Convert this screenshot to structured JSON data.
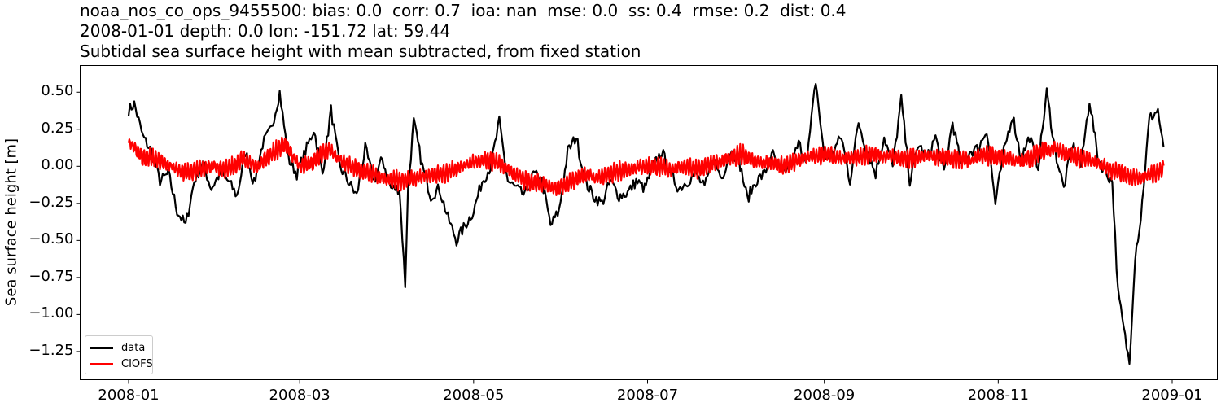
{
  "title": {
    "line1": "noaa_nos_co_ops_9455500: bias: 0.0  corr: 0.7  ioa: nan  mse: 0.0  ss: 0.4  rmse: 0.2  dist: 0.4",
    "line2": "2008-01-01 depth: 0.0 lon: -151.72 lat: 59.44",
    "line3": "Subtidal sea surface height with mean subtracted, from fixed station"
  },
  "colors": {
    "data": "#000000",
    "model": "#ff0000",
    "axis": "#000000",
    "legend_border": "#cccccc"
  },
  "chart_data": {
    "type": "line",
    "title": "noaa_nos_co_ops_9455500: bias: 0.0  corr: 0.7  ioa: nan  mse: 0.0  ss: 0.4  rmse: 0.2  dist: 0.4 / 2008-01-01 depth: 0.0 lon: -151.72 lat: 59.44 / Subtidal sea surface height with mean subtracted, from fixed station",
    "xlabel": "",
    "ylabel": "Sea surface height [m]",
    "ylim": [
      -1.44,
      0.68
    ],
    "xlim": [
      "2007-12-20",
      "2009-01-13"
    ],
    "yticks": [
      0.5,
      0.25,
      0.0,
      -0.25,
      -0.5,
      -0.75,
      -1.0,
      -1.25
    ],
    "ytick_labels": [
      "0.50",
      "0.25",
      "0.00",
      "−0.25",
      "−0.50",
      "−0.75",
      "−1.00",
      "−1.25"
    ],
    "xticks": [
      "2008-01",
      "2008-03",
      "2008-05",
      "2008-07",
      "2008-09",
      "2008-11",
      "2009-01"
    ],
    "grid": false,
    "legend_position": "lower left",
    "legend": [
      "data",
      "CIOFS"
    ],
    "series": [
      {
        "name": "data",
        "color": "#000000",
        "x_day": [
          0,
          2,
          5,
          8,
          11,
          14,
          17,
          20,
          23,
          26,
          29,
          32,
          35,
          38,
          41,
          44,
          47,
          50,
          53,
          56,
          59,
          62,
          65,
          68,
          71,
          74,
          77,
          80,
          83,
          86,
          89,
          92,
          95,
          97,
          98,
          100,
          103,
          106,
          109,
          112,
          115,
          118,
          121,
          124,
          127,
          130,
          133,
          136,
          139,
          142,
          145,
          148,
          151,
          154,
          157,
          160,
          163,
          166,
          169,
          172,
          175,
          178,
          181,
          184,
          187,
          190,
          193,
          196,
          199,
          202,
          205,
          208,
          211,
          214,
          217,
          220,
          223,
          226,
          229,
          232,
          235,
          238,
          241,
          244,
          247,
          250,
          253,
          256,
          259,
          262,
          265,
          268,
          271,
          274,
          277,
          280,
          283,
          286,
          289,
          292,
          295,
          298,
          301,
          304,
          307,
          310,
          313,
          316,
          319,
          322,
          325,
          328,
          331,
          334,
          337,
          340,
          343,
          345,
          347,
          349,
          351,
          353,
          355,
          358,
          361,
          363
        ],
        "values": [
          0.38,
          0.42,
          0.2,
          0.1,
          -0.1,
          -0.05,
          -0.3,
          -0.4,
          -0.1,
          0.02,
          -0.15,
          -0.05,
          -0.1,
          -0.2,
          0.1,
          -0.12,
          0.15,
          0.25,
          0.5,
          0.05,
          -0.05,
          0.1,
          0.25,
          -0.05,
          0.38,
          0.0,
          -0.1,
          -0.2,
          0.12,
          -0.1,
          0.05,
          -0.15,
          -0.15,
          -0.8,
          -0.15,
          0.3,
          0.0,
          -0.2,
          -0.15,
          -0.35,
          -0.5,
          -0.4,
          -0.3,
          -0.1,
          0.0,
          0.3,
          -0.1,
          -0.15,
          -0.2,
          -0.05,
          -0.1,
          -0.4,
          -0.3,
          0.1,
          0.2,
          -0.1,
          -0.2,
          -0.25,
          -0.1,
          -0.2,
          -0.18,
          -0.1,
          -0.15,
          0.0,
          0.1,
          -0.05,
          -0.15,
          -0.1,
          -0.05,
          -0.15,
          0.05,
          -0.08,
          0.1,
          0.05,
          -0.22,
          -0.1,
          -0.05,
          0.08,
          -0.05,
          0.0,
          0.15,
          0.05,
          0.58,
          0.05,
          0.1,
          0.2,
          -0.1,
          0.3,
          0.1,
          -0.05,
          0.2,
          0.0,
          0.45,
          -0.1,
          0.15,
          0.05,
          0.2,
          -0.05,
          0.3,
          0.0,
          0.1,
          0.12,
          0.25,
          -0.25,
          0.1,
          0.35,
          0.05,
          0.2,
          0.0,
          0.5,
          0.1,
          -0.15,
          0.15,
          0.0,
          0.45,
          0.05,
          -0.05,
          -0.1,
          -0.85,
          -1.1,
          -1.33,
          -0.6,
          -0.35,
          0.32,
          0.38,
          0.1,
          0.45,
          0.35
        ],
        "gaps_note": "dashed/gapped segments near 2008-12-10 to 2008-12-20"
      },
      {
        "name": "CIOFS",
        "color": "#ff0000",
        "x_day": [
          0,
          5,
          10,
          15,
          20,
          25,
          30,
          35,
          40,
          45,
          50,
          55,
          60,
          65,
          70,
          75,
          80,
          85,
          90,
          95,
          100,
          105,
          110,
          115,
          120,
          125,
          130,
          135,
          140,
          145,
          150,
          155,
          160,
          165,
          170,
          175,
          180,
          185,
          190,
          195,
          200,
          205,
          210,
          215,
          220,
          225,
          230,
          235,
          240,
          245,
          250,
          255,
          260,
          265,
          270,
          275,
          280,
          285,
          290,
          295,
          300,
          305,
          310,
          315,
          320,
          325,
          330,
          335,
          340,
          345,
          350,
          355,
          360,
          363
        ],
        "values": [
          0.16,
          0.06,
          0.05,
          0.0,
          -0.04,
          -0.02,
          0.0,
          -0.02,
          0.05,
          0.0,
          0.08,
          0.15,
          0.0,
          0.03,
          0.12,
          0.03,
          -0.02,
          -0.05,
          -0.08,
          -0.1,
          -0.08,
          -0.06,
          -0.05,
          -0.02,
          0.02,
          0.05,
          0.02,
          -0.05,
          -0.1,
          -0.12,
          -0.15,
          -0.1,
          -0.06,
          -0.08,
          -0.04,
          -0.02,
          0.0,
          0.0,
          -0.02,
          0.0,
          -0.02,
          0.02,
          0.05,
          0.08,
          0.03,
          0.02,
          0.0,
          0.04,
          0.07,
          0.08,
          0.05,
          0.06,
          0.08,
          0.07,
          0.06,
          0.05,
          0.07,
          0.06,
          0.05,
          0.04,
          0.08,
          0.06,
          0.04,
          0.05,
          0.1,
          0.12,
          0.08,
          0.05,
          0.02,
          -0.03,
          -0.06,
          -0.08,
          -0.04,
          -0.02
        ],
        "tidal_ripple_amplitude": 0.06
      }
    ]
  }
}
